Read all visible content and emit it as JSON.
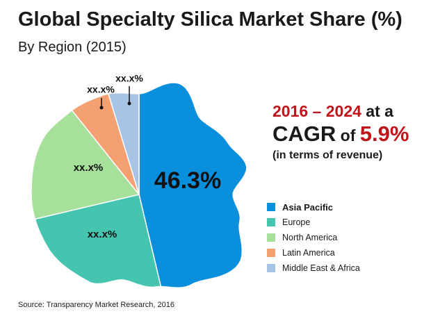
{
  "chart_data": {
    "type": "pie",
    "title": "Global Specialty Silica Market Share (%)",
    "subtitle": "By Region (2015)",
    "categories": [
      "Asia Pacific",
      "Europe",
      "North America",
      "Latin America",
      "Middle East & Africa"
    ],
    "values": [
      46.3,
      25.0,
      18.0,
      6.0,
      4.7
    ],
    "labels": [
      "46.3%",
      "xx.x%",
      "xx.x%",
      "xx.x%",
      "xx.x%"
    ],
    "colors": [
      "#0a8fdc",
      "#45c5b0",
      "#a6e09a",
      "#f5a072",
      "#a7c4e6"
    ],
    "legend_position": "right"
  },
  "cagr": {
    "period": "2016 – 2024",
    "at_a": " at a",
    "cagr_word": "CAGR",
    "of_word": " of ",
    "value": "5.9%",
    "basis": "(in terms of revenue)"
  },
  "source": "Source: Transparency Market Research, 2016"
}
